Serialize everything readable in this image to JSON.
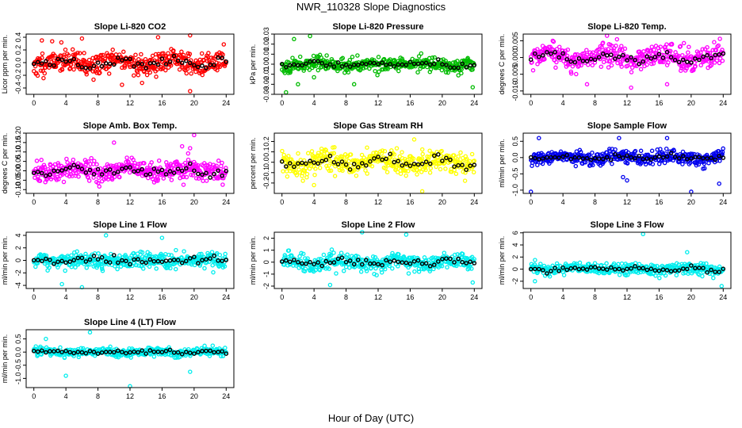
{
  "figure": {
    "title": "NWR_110328  Slope Diagnostics",
    "xlabel": "Hour of Day (UTC)"
  },
  "chart_data": [
    {
      "id": "co2",
      "type": "scatter",
      "title": "Slope Li-820 CO2",
      "ylabel": "Licor ppm per min.",
      "color": "#ff0000",
      "xlim": [
        0,
        24
      ],
      "ylim": [
        -0.5,
        0.45
      ],
      "xticks": [
        0,
        4,
        8,
        12,
        16,
        20,
        24
      ],
      "yticks": [
        -0.4,
        -0.2,
        0.0,
        0.2,
        0.4
      ],
      "ytick_labels": [
        "-0.4",
        "-0.2",
        "0.0",
        "0.2",
        "0.4"
      ],
      "spread": 0.16,
      "mean_amp": 0.1,
      "outliers": [
        [
          19.5,
          -0.45
        ],
        [
          19.5,
          0.43
        ],
        [
          15.5,
          0.4
        ],
        [
          1.0,
          0.35
        ],
        [
          11.0,
          -0.35
        ],
        [
          13.5,
          -0.32
        ],
        [
          6.0,
          0.38
        ]
      ],
      "seed": 11
    },
    {
      "id": "pressure",
      "type": "scatter",
      "title": "Slope Li-820 Pressure",
      "ylabel": "kPa per min.",
      "color": "#00bb00",
      "xlim": [
        0,
        24
      ],
      "ylim": [
        -0.03,
        0.03
      ],
      "xticks": [
        0,
        4,
        8,
        12,
        16,
        20,
        24
      ],
      "yticks": [
        -0.03,
        -0.02,
        -0.01,
        0.0,
        0.01,
        0.02,
        0.03
      ],
      "ytick_labels": [
        "-0.03",
        "-0.02",
        "-0.01",
        "0.00",
        "0.01",
        "0.02",
        "0.03"
      ],
      "spread": 0.006,
      "mean_amp": 0.003,
      "outliers": [
        [
          0.5,
          -0.028
        ],
        [
          1.5,
          0.025
        ],
        [
          3.5,
          0.028
        ],
        [
          2.0,
          -0.02
        ],
        [
          9.0,
          -0.02
        ],
        [
          23.8,
          -0.023
        ],
        [
          4.0,
          -0.013
        ]
      ],
      "seed": 23
    },
    {
      "id": "temp",
      "type": "scatter",
      "title": "Slope Li-820 Temp.",
      "ylabel": "degrees C per min.",
      "color": "#ff00ff",
      "xlim": [
        0,
        24
      ],
      "ylim": [
        -0.011,
        0.007
      ],
      "xticks": [
        0,
        4,
        8,
        12,
        16,
        20,
        24
      ],
      "yticks": [
        -0.01,
        -0.005,
        0.0,
        0.005
      ],
      "ytick_labels": [
        "-0.010",
        "-0.005",
        "0.000",
        "0.005"
      ],
      "spread": 0.003,
      "mean_amp": 0.002,
      "outliers": [
        [
          9.5,
          0.0065
        ],
        [
          7.0,
          -0.008
        ],
        [
          12.5,
          -0.009
        ],
        [
          17.0,
          -0.008
        ]
      ],
      "seed": 37
    },
    {
      "id": "boxtemp",
      "type": "scatter",
      "title": "Slope Amb. Box Temp.",
      "ylabel": "degrees C per min.",
      "color": "#ff00ff",
      "xlim": [
        0,
        24
      ],
      "ylim": [
        -0.12,
        0.2
      ],
      "xticks": [
        0,
        4,
        8,
        12,
        16,
        20,
        24
      ],
      "yticks": [
        -0.1,
        -0.05,
        0.0,
        0.05,
        0.1,
        0.15,
        0.2
      ],
      "ytick_labels": [
        "-0.10",
        "-0.05",
        "0.00",
        "0.05",
        "0.10",
        "0.15",
        "0.20"
      ],
      "spread": 0.05,
      "mean_amp": 0.03,
      "outliers": [
        [
          20.0,
          0.19
        ],
        [
          18.5,
          0.13
        ],
        [
          19.5,
          0.12
        ],
        [
          10.0,
          0.15
        ]
      ],
      "seed": 41
    },
    {
      "id": "rh",
      "type": "scatter",
      "title": "Slope Gas Stream RH",
      "ylabel": "percent per min.",
      "color": "#ffff00",
      "xlim": [
        0,
        24
      ],
      "ylim": [
        -0.3,
        0.28
      ],
      "xticks": [
        0,
        4,
        8,
        12,
        16,
        20,
        24
      ],
      "yticks": [
        -0.2,
        -0.1,
        0.0,
        0.1,
        0.2
      ],
      "ytick_labels": [
        "-0.2",
        "-0.1",
        "0.0",
        "0.1",
        "0.2"
      ],
      "spread": 0.1,
      "mean_amp": 0.07,
      "outliers": [
        [
          4.0,
          -0.22
        ],
        [
          17.5,
          -0.28
        ],
        [
          16.5,
          0.22
        ]
      ],
      "seed": 53
    },
    {
      "id": "sampleflow",
      "type": "scatter",
      "title": "Slope Sample Flow",
      "ylabel": "ml/min per min.",
      "color": "#0000ee",
      "xlim": [
        0,
        24
      ],
      "ylim": [
        -1.1,
        0.75
      ],
      "xticks": [
        0,
        4,
        8,
        12,
        16,
        20,
        24
      ],
      "yticks": [
        -1.0,
        -0.5,
        0.0,
        0.5
      ],
      "ytick_labels": [
        "-1.0",
        "-0.5",
        "0.0",
        "0.5"
      ],
      "spread": 0.17,
      "mean_amp": 0.08,
      "outliers": [
        [
          0.0,
          -1.05
        ],
        [
          20.0,
          -1.05
        ],
        [
          23.5,
          -0.8
        ],
        [
          12.0,
          -0.7
        ],
        [
          11.5,
          -0.6
        ],
        [
          1.0,
          0.6
        ],
        [
          11.0,
          0.6
        ],
        [
          17.0,
          0.6
        ]
      ],
      "seed": 67
    },
    {
      "id": "line1",
      "type": "scatter",
      "title": "Slope Line 1 Flow",
      "ylabel": "ml/min per min.",
      "color": "#00eeee",
      "xlim": [
        0,
        24
      ],
      "ylim": [
        -4.5,
        4.5
      ],
      "xticks": [
        0,
        4,
        8,
        12,
        16,
        20,
        24
      ],
      "yticks": [
        -4,
        -2,
        0,
        2,
        4
      ],
      "ytick_labels": [
        "-4",
        "-2",
        "0",
        "2",
        "4"
      ],
      "spread": 1.1,
      "mean_amp": 0.3,
      "outliers": [
        [
          9.0,
          4.0
        ],
        [
          6.0,
          -4.3
        ],
        [
          3.5,
          -3.8
        ],
        [
          16.0,
          3.6
        ]
      ],
      "seed": 71
    },
    {
      "id": "line2",
      "type": "scatter",
      "title": "Slope Line 2 Flow",
      "ylabel": "ml/min per min.",
      "color": "#00eeee",
      "xlim": [
        0,
        24
      ],
      "ylim": [
        -2.2,
        2.5
      ],
      "xticks": [
        0,
        4,
        8,
        12,
        16,
        20,
        24
      ],
      "yticks": [
        -2,
        -1,
        0,
        1,
        2
      ],
      "ytick_labels": [
        "-2",
        "-1",
        "0",
        "1",
        "2"
      ],
      "spread": 0.6,
      "mean_amp": 0.35,
      "outliers": [
        [
          10.0,
          2.5
        ],
        [
          15.5,
          2.3
        ],
        [
          23.8,
          -1.7
        ],
        [
          6.0,
          -1.9
        ]
      ],
      "seed": 83
    },
    {
      "id": "line3",
      "type": "scatter",
      "title": "Slope Line 3 Flow",
      "ylabel": "ml/min per min.",
      "color": "#00eeee",
      "xlim": [
        0,
        24
      ],
      "ylim": [
        -3.2,
        6.1
      ],
      "xticks": [
        0,
        4,
        8,
        12,
        16,
        20,
        24
      ],
      "yticks": [
        -2,
        0,
        2,
        4,
        6
      ],
      "ytick_labels": [
        "-2",
        "0",
        "2",
        "4",
        "6"
      ],
      "spread": 0.9,
      "mean_amp": 0.4,
      "outliers": [
        [
          14.0,
          5.8
        ],
        [
          23.8,
          -2.8
        ],
        [
          0.5,
          -2.0
        ],
        [
          19.5,
          2.8
        ]
      ],
      "seed": 97
    },
    {
      "id": "line4",
      "type": "scatter",
      "title": "Slope Line 4 (LT) Flow",
      "ylabel": "ml/min per min.",
      "color": "#00eeee",
      "xlim": [
        0,
        24
      ],
      "ylim": [
        -1.35,
        0.85
      ],
      "xticks": [
        0,
        4,
        8,
        12,
        16,
        20,
        24
      ],
      "yticks": [
        -1.0,
        -0.5,
        0.0,
        0.5
      ],
      "ytick_labels": [
        "-1.0",
        "-0.5",
        "0.0",
        "0.5"
      ],
      "spread": 0.14,
      "mean_amp": 0.05,
      "outliers": [
        [
          12.0,
          -1.3
        ],
        [
          4.0,
          -0.9
        ],
        [
          19.5,
          -0.75
        ],
        [
          7.0,
          0.75
        ],
        [
          1.5,
          0.5
        ]
      ],
      "seed": 101
    }
  ]
}
